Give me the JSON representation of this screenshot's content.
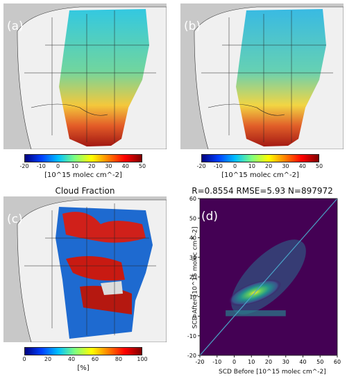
{
  "panels": {
    "a": {
      "label": "(a)",
      "colorbar": {
        "ticks": [
          "-20",
          "-10",
          "0",
          "10",
          "20",
          "30",
          "40",
          "50"
        ],
        "unit": "[10^15 molec cm^-2]"
      }
    },
    "b": {
      "label": "(b)",
      "colorbar": {
        "ticks": [
          "-20",
          "-10",
          "0",
          "10",
          "20",
          "30",
          "40",
          "50"
        ],
        "unit": "[10^15 molec cm^-2]"
      }
    },
    "c": {
      "label": "(c)",
      "title": "Cloud Fraction",
      "colorbar": {
        "ticks": [
          "0",
          "20",
          "40",
          "60",
          "80",
          "100"
        ],
        "unit": "[%]"
      }
    },
    "d": {
      "label": "(d)",
      "title": "R=0.8554 RMSE=5.93 N=897972"
    }
  },
  "chart_data": {
    "type": "heatmap",
    "title": "R=0.8554 RMSE=5.93 N=897972",
    "xlabel": "SCD Before [10^15 molec cm^-2]",
    "ylabel": "SCD After [10^15 molec cm^-2]",
    "xlim": [
      -20,
      60
    ],
    "ylim": [
      -20,
      60
    ],
    "x_ticks": [
      -20,
      -10,
      0,
      10,
      20,
      30,
      40,
      50,
      60
    ],
    "y_ticks": [
      -20,
      -10,
      0,
      10,
      20,
      30,
      40,
      50,
      60
    ],
    "density_peak": {
      "x": 12,
      "y": 12
    },
    "one_to_one_line": true
  },
  "colors": {
    "background": "#440154",
    "map_land": "#f2f2f2",
    "map_ocean": "#c9c9c9",
    "line": "#4aa3c8"
  }
}
